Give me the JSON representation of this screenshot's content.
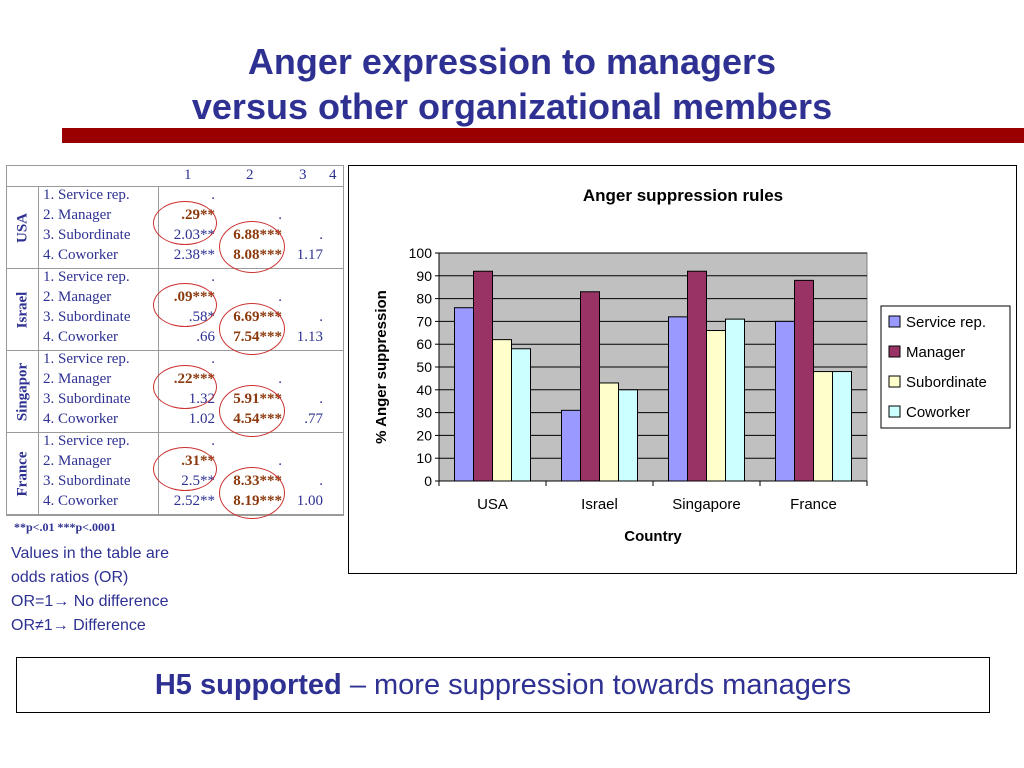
{
  "slide": {
    "title_line1": "Anger expression to managers",
    "title_line2": "versus other organizational members",
    "conclusion_bold": "H5 supported",
    "conclusion_rest": " – more suppression towards managers"
  },
  "table": {
    "col_headers": [
      "1",
      "2",
      "3",
      "4"
    ],
    "groups": [
      {
        "country": "USA",
        "rows": [
          {
            "label": "1. Service rep.",
            "c1": ".",
            "c2": "",
            "c3": ""
          },
          {
            "label": "2. Manager",
            "c1": ".29**",
            "c2": ".",
            "c3": ""
          },
          {
            "label": "3. Subordinate",
            "c1": "2.03**",
            "c2": "6.88***",
            "c3": "."
          },
          {
            "label": "4. Coworker",
            "c1": "2.38**",
            "c2": "8.08***",
            "c3": "1.17"
          }
        ]
      },
      {
        "country": "Israel",
        "rows": [
          {
            "label": "1. Service rep.",
            "c1": ".",
            "c2": "",
            "c3": ""
          },
          {
            "label": "2. Manager",
            "c1": ".09***",
            "c2": ".",
            "c3": ""
          },
          {
            "label": "3. Subordinate",
            "c1": ".58*",
            "c2": "6.69***",
            "c3": "."
          },
          {
            "label": "4. Coworker",
            "c1": ".66",
            "c2": "7.54***",
            "c3": "1.13"
          }
        ]
      },
      {
        "country": "Singapor",
        "rows": [
          {
            "label": "1. Service rep.",
            "c1": ".",
            "c2": "",
            "c3": ""
          },
          {
            "label": "2. Manager",
            "c1": ".22***",
            "c2": ".",
            "c3": ""
          },
          {
            "label": "3. Subordinate",
            "c1": "1.32",
            "c2": "5.91***",
            "c3": "."
          },
          {
            "label": "4. Coworker",
            "c1": "1.02",
            "c2": "4.54***",
            "c3": ".77"
          }
        ]
      },
      {
        "country": "France",
        "rows": [
          {
            "label": "1. Service rep.",
            "c1": ".",
            "c2": "",
            "c3": ""
          },
          {
            "label": "2. Manager",
            "c1": ".31**",
            "c2": ".",
            "c3": ""
          },
          {
            "label": "3. Subordinate",
            "c1": "2.5**",
            "c2": "8.33***",
            "c3": "."
          },
          {
            "label": "4. Coworker",
            "c1": "2.52**",
            "c2": "8.19***",
            "c3": "1.00"
          }
        ]
      }
    ],
    "significance_note": "**p<.01  ***p<.0001",
    "explanation": [
      "Values in the table are",
      "odds ratios (OR)",
      "OR=1→ No difference",
      "OR≠1→ Difference"
    ],
    "colors": {
      "text": "#2e3192",
      "highlight": "#8b3a0e",
      "circle": "#cc3333"
    }
  },
  "chart_data": {
    "type": "bar",
    "title": "Anger suppression rules",
    "xlabel": "Country",
    "ylabel": "% Anger suppression",
    "ylim": [
      0,
      100
    ],
    "yticks": [
      0,
      10,
      20,
      30,
      40,
      50,
      60,
      70,
      80,
      90,
      100
    ],
    "categories": [
      "USA",
      "Israel",
      "Singapore",
      "France"
    ],
    "series": [
      {
        "name": "Service rep.",
        "color": "#9999ff",
        "values": [
          76,
          31,
          72,
          70
        ]
      },
      {
        "name": "Manager",
        "color": "#993366",
        "values": [
          92,
          83,
          92,
          88
        ]
      },
      {
        "name": "Subordinate",
        "color": "#ffffcc",
        "values": [
          62,
          43,
          66,
          48
        ]
      },
      {
        "name": "Coworker",
        "color": "#ccffff",
        "values": [
          58,
          40,
          71,
          48
        ]
      }
    ],
    "plot_background": "#c0c0c0",
    "grid": true,
    "legend_position": "right"
  }
}
